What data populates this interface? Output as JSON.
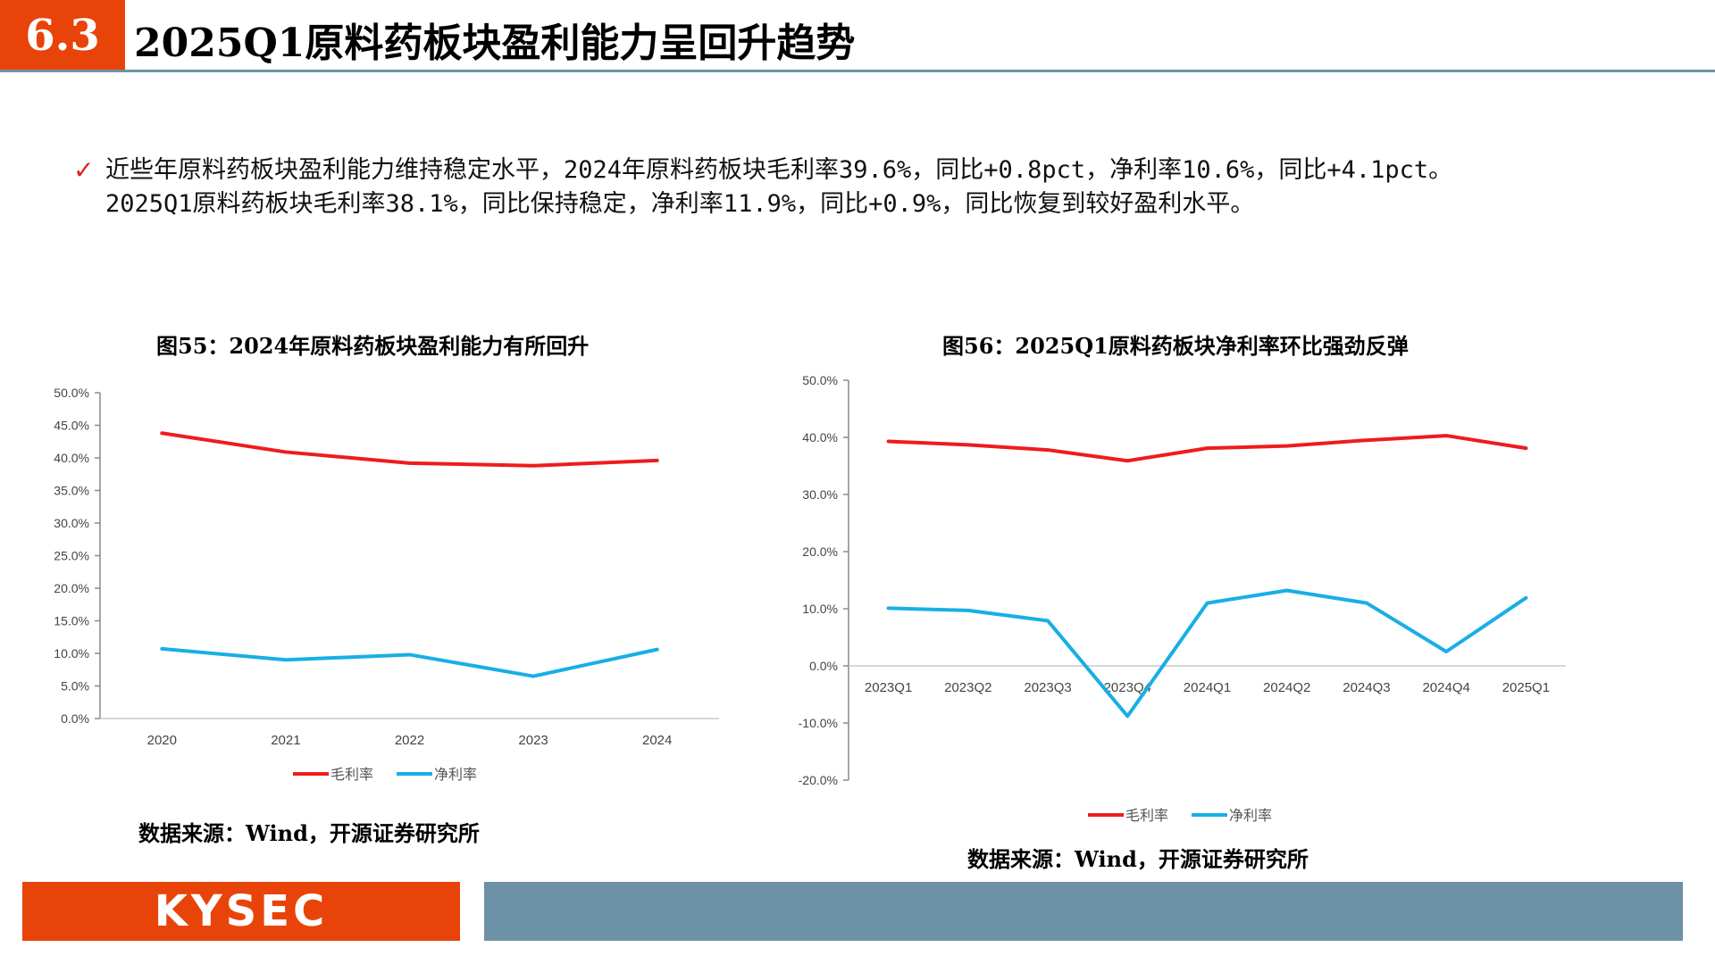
{
  "header": {
    "section_number": "6.3",
    "title": "2025Q1原料药板块盈利能力呈回升趋势"
  },
  "bullet": {
    "check_icon": "check-icon",
    "line1": "近些年原料药板块盈利能力维持稳定水平，2024年原料药板块毛利率39.6%，同比+0.8pct，净利率10.6%，同比+4.1pct。",
    "line2": "2025Q1原料药板块毛利率38.1%，同比保持稳定，净利率11.9%，同比+0.9%，同比恢复到较好盈利水平。"
  },
  "left_chart": {
    "source": "数据来源：Wind，开源证券研究所"
  },
  "right_chart": {
    "source": "数据来源：Wind，开源证券研究所"
  },
  "footer": {
    "logo_text": "KYSEC"
  },
  "colors": {
    "brand_orange": "#e8440a",
    "brand_gray_blue": "#6d92a7",
    "gross_margin": "#ee1c1c",
    "net_margin": "#18aee6"
  },
  "chart_data": [
    {
      "type": "line",
      "title": "图55：2024年原料药板块盈利能力有所回升",
      "categories": [
        "2020",
        "2021",
        "2022",
        "2023",
        "2024"
      ],
      "series": [
        {
          "name": "毛利率",
          "values": [
            43.8,
            40.9,
            39.2,
            38.8,
            39.6
          ]
        },
        {
          "name": "净利率",
          "values": [
            10.7,
            9.0,
            9.8,
            6.5,
            10.6
          ]
        }
      ],
      "yticks": [
        "0.0%",
        "5.0%",
        "10.0%",
        "15.0%",
        "20.0%",
        "25.0%",
        "30.0%",
        "35.0%",
        "40.0%",
        "45.0%",
        "50.0%"
      ],
      "ylim": [
        0,
        50
      ],
      "legend": "bottom",
      "grid": false
    },
    {
      "type": "line",
      "title": "图56：2025Q1原料药板块净利率环比强劲反弹",
      "categories": [
        "2023Q1",
        "2023Q2",
        "2023Q3",
        "2023Q4",
        "2024Q1",
        "2024Q2",
        "2024Q3",
        "2024Q4",
        "2025Q1"
      ],
      "series": [
        {
          "name": "毛利率",
          "values": [
            39.3,
            38.7,
            37.8,
            35.9,
            38.1,
            38.5,
            39.5,
            40.3,
            38.1
          ]
        },
        {
          "name": "净利率",
          "values": [
            10.1,
            9.7,
            7.9,
            -8.8,
            11.0,
            13.2,
            11.0,
            2.5,
            11.9
          ]
        }
      ],
      "yticks": [
        "-20.0%",
        "-10.0%",
        "0.0%",
        "10.0%",
        "20.0%",
        "30.0%",
        "40.0%",
        "50.0%"
      ],
      "ylim": [
        -20,
        50
      ],
      "legend": "bottom",
      "grid": false
    }
  ]
}
